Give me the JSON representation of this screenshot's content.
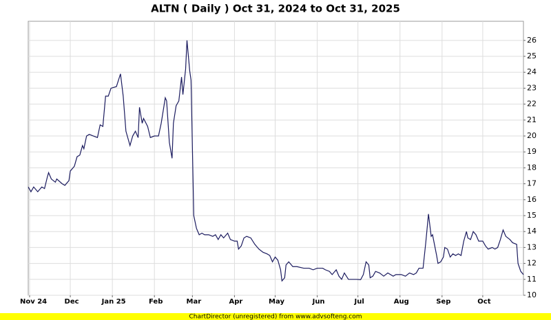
{
  "chart_data": {
    "type": "line",
    "title": "ALTN ( Daily ) Oct 31, 2024 to Oct 31, 2025",
    "footer": "ChartDirector (unregistered) from www.advsofteng.com",
    "color": "#1a1a5e",
    "grid": true,
    "xlim": [
      0,
      365
    ],
    "xticks": [
      {
        "value": 1,
        "label": "Nov 24"
      },
      {
        "value": 31,
        "label": "Dec"
      },
      {
        "value": 62,
        "label": "Jan 25"
      },
      {
        "value": 93,
        "label": "Feb"
      },
      {
        "value": 121,
        "label": "Mar"
      },
      {
        "value": 152,
        "label": "Apr"
      },
      {
        "value": 182,
        "label": "May"
      },
      {
        "value": 213,
        "label": "Jun"
      },
      {
        "value": 243,
        "label": "Jul"
      },
      {
        "value": 274,
        "label": "Aug"
      },
      {
        "value": 305,
        "label": "Sep"
      },
      {
        "value": 335,
        "label": "Oct"
      }
    ],
    "ylim": [
      10,
      27.2
    ],
    "yticks": [
      10,
      11,
      12,
      13,
      14,
      15,
      16,
      17,
      18,
      19,
      20,
      21,
      22,
      23,
      24,
      25,
      26
    ],
    "x": [
      0,
      2,
      4,
      7,
      10,
      12,
      14,
      15,
      17,
      20,
      21,
      25,
      27,
      30,
      31,
      34,
      36,
      38,
      40,
      41,
      43,
      45,
      48,
      51,
      53,
      55,
      57,
      59,
      61,
      65,
      68,
      70,
      72,
      73,
      75,
      77,
      79,
      81,
      82,
      84,
      85,
      88,
      90,
      93,
      96,
      98,
      101,
      102,
      104,
      106,
      107,
      109,
      111,
      113,
      114,
      116,
      117,
      119,
      120,
      122,
      124,
      126,
      128,
      130,
      133,
      136,
      138,
      140,
      142,
      144,
      147,
      149,
      152,
      154,
      155,
      157,
      159,
      161,
      164,
      167,
      170,
      173,
      176,
      178,
      180,
      182,
      184,
      186,
      187,
      189,
      190,
      192,
      195,
      198,
      203,
      207,
      210,
      213,
      217,
      219,
      222,
      224,
      227,
      229,
      231,
      233,
      236,
      239,
      242,
      245,
      247,
      249,
      251,
      252,
      254,
      256,
      259,
      262,
      265,
      269,
      271,
      275,
      278,
      281,
      284,
      286,
      288,
      291,
      293,
      295,
      297,
      298,
      301,
      302,
      304,
      306,
      307,
      309,
      311,
      313,
      315,
      317,
      319,
      321,
      323,
      324,
      326,
      328,
      330,
      332,
      335,
      337,
      339,
      342,
      344,
      346,
      348,
      350,
      352,
      355,
      357,
      360,
      361,
      363,
      365
    ],
    "values": [
      16.8,
      16.5,
      16.8,
      16.5,
      16.8,
      16.7,
      17.4,
      17.7,
      17.3,
      17.1,
      17.3,
      17.0,
      16.9,
      17.2,
      17.8,
      18.1,
      18.7,
      18.8,
      19.4,
      19.2,
      20.0,
      20.1,
      20.0,
      19.9,
      20.7,
      20.6,
      22.5,
      22.5,
      23.0,
      23.1,
      23.9,
      22.5,
      20.3,
      20.0,
      19.4,
      20.0,
      20.3,
      19.9,
      21.8,
      20.8,
      21.1,
      20.6,
      19.9,
      20.0,
      20.0,
      20.8,
      22.4,
      22.2,
      19.6,
      18.6,
      20.8,
      21.9,
      22.2,
      23.7,
      22.6,
      24.2,
      26.0,
      24.1,
      23.5,
      15.0,
      14.2,
      13.8,
      13.9,
      13.8,
      13.8,
      13.7,
      13.8,
      13.5,
      13.8,
      13.6,
      13.9,
      13.5,
      13.4,
      13.4,
      12.9,
      13.1,
      13.6,
      13.7,
      13.6,
      13.2,
      12.9,
      12.7,
      12.6,
      12.5,
      12.1,
      12.4,
      12.2,
      11.6,
      10.9,
      11.1,
      11.9,
      12.1,
      11.8,
      11.8,
      11.7,
      11.7,
      11.6,
      11.7,
      11.7,
      11.6,
      11.5,
      11.3,
      11.6,
      11.2,
      11.0,
      11.4,
      11.0,
      11.0,
      11.0,
      10.98,
      11.3,
      12.1,
      11.9,
      11.1,
      11.2,
      11.5,
      11.4,
      11.2,
      11.4,
      11.2,
      11.3,
      11.3,
      11.2,
      11.4,
      11.3,
      11.4,
      11.7,
      11.7,
      13.3,
      15.1,
      13.7,
      13.8,
      12.5,
      12.0,
      12.1,
      12.4,
      13.0,
      12.9,
      12.4,
      12.6,
      12.5,
      12.6,
      12.5,
      13.4,
      14.0,
      13.6,
      13.5,
      14.0,
      13.8,
      13.4,
      13.4,
      13.1,
      12.9,
      13.0,
      12.9,
      13.0,
      13.5,
      14.1,
      13.7,
      13.5,
      13.3,
      13.2,
      12.0,
      11.5,
      11.3
    ]
  }
}
